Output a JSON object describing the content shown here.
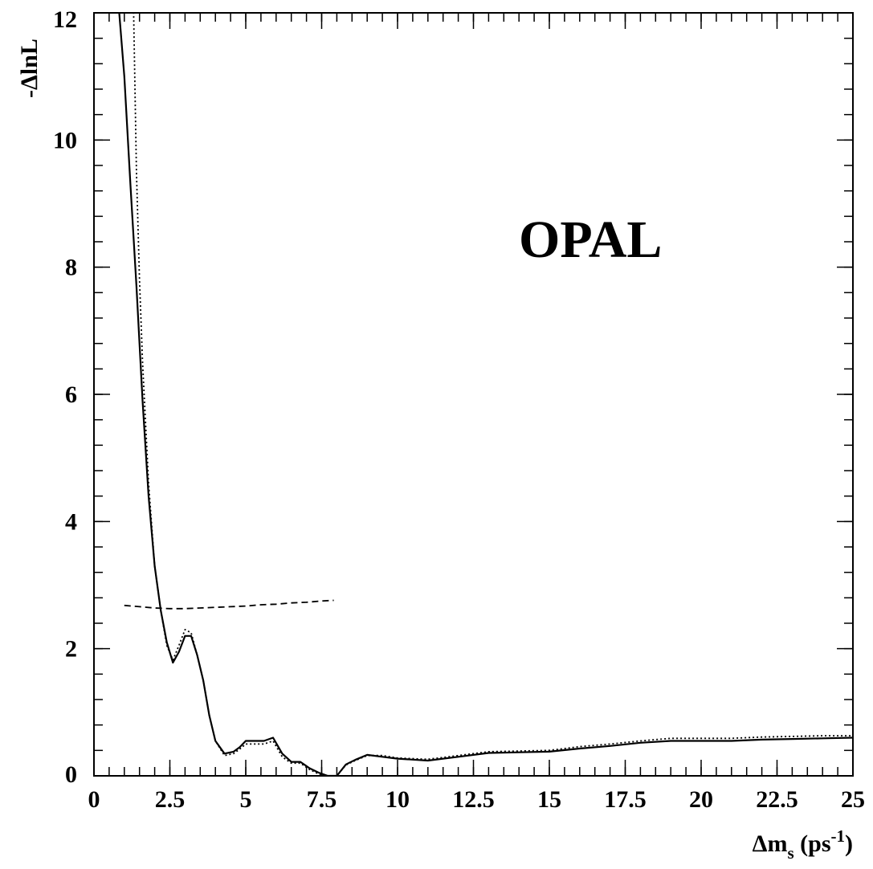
{
  "chart_data": {
    "type": "line",
    "title": "",
    "annotation": "OPAL",
    "xlabel": {
      "main": "Δm",
      "subscript": "s",
      "unit_open": " (ps",
      "unit_exp": "-1",
      "unit_close": ")"
    },
    "ylabel": "-ΔlnL",
    "xlim": [
      0,
      25
    ],
    "ylim": [
      0,
      12
    ],
    "x_ticks": [
      {
        "value": 0,
        "label": "0"
      },
      {
        "value": 2.5,
        "label": "2.5"
      },
      {
        "value": 5,
        "label": "5"
      },
      {
        "value": 7.5,
        "label": "7.5"
      },
      {
        "value": 10,
        "label": "10"
      },
      {
        "value": 12.5,
        "label": "12.5"
      },
      {
        "value": 15,
        "label": "15"
      },
      {
        "value": 17.5,
        "label": "17.5"
      },
      {
        "value": 20,
        "label": "20"
      },
      {
        "value": 22.5,
        "label": "22.5"
      },
      {
        "value": 25,
        "label": "25"
      }
    ],
    "y_ticks": [
      {
        "value": 0,
        "label": "0"
      },
      {
        "value": 2,
        "label": "2"
      },
      {
        "value": 4,
        "label": "4"
      },
      {
        "value": 6,
        "label": "6"
      },
      {
        "value": 8,
        "label": "8"
      },
      {
        "value": 10,
        "label": "10"
      },
      {
        "value": 12,
        "label": "12"
      }
    ],
    "x_minor_step": 0.5,
    "y_minor_step": 0.4,
    "grid": false,
    "series": [
      {
        "style": "solid",
        "x": [
          0.8,
          1.0,
          1.2,
          1.4,
          1.6,
          1.8,
          2.0,
          2.2,
          2.4,
          2.6,
          2.8,
          3.0,
          3.2,
          3.4,
          3.6,
          3.8,
          4.0,
          4.3,
          4.6,
          4.8,
          5.0,
          5.3,
          5.6,
          5.9,
          6.2,
          6.5,
          6.8,
          7.1,
          7.4,
          7.7,
          8.0,
          8.3,
          8.6,
          9.0,
          9.5,
          10.0,
          11.0,
          12.0,
          13.0,
          14.0,
          15.0,
          16.0,
          17.0,
          18.0,
          19.0,
          20.0,
          21.0,
          22.0,
          23.0,
          24.0,
          25.0
        ],
        "y": [
          12.2,
          11.0,
          9.3,
          7.7,
          5.9,
          4.4,
          3.3,
          2.6,
          2.1,
          1.78,
          1.95,
          2.2,
          2.2,
          1.9,
          1.5,
          0.95,
          0.55,
          0.35,
          0.38,
          0.45,
          0.55,
          0.55,
          0.55,
          0.6,
          0.35,
          0.22,
          0.22,
          0.12,
          0.05,
          0.0,
          0.0,
          0.18,
          0.25,
          0.33,
          0.3,
          0.27,
          0.24,
          0.3,
          0.36,
          0.37,
          0.38,
          0.43,
          0.47,
          0.52,
          0.55,
          0.55,
          0.55,
          0.57,
          0.58,
          0.59,
          0.6
        ]
      },
      {
        "style": "dotted",
        "x": [
          1.3,
          1.4,
          1.5,
          1.6,
          1.8,
          2.0,
          2.2,
          2.4,
          2.6,
          2.8,
          3.0,
          3.2,
          3.4,
          3.6,
          3.8,
          4.0,
          4.3,
          4.6,
          4.8,
          5.0,
          5.3,
          5.6,
          5.9,
          6.2,
          6.5,
          6.8,
          7.1,
          7.4,
          7.7,
          8.0,
          8.3,
          8.6,
          9.0,
          9.5,
          10.0,
          11.0,
          12.0,
          13.0,
          14.0,
          15.0,
          16.0,
          17.0,
          18.0,
          19.0,
          20.0,
          21.0,
          22.0,
          23.0,
          24.0,
          25.0
        ],
        "y": [
          12.2,
          9.5,
          7.8,
          6.5,
          4.6,
          3.3,
          2.6,
          2.05,
          1.82,
          2.05,
          2.3,
          2.25,
          1.9,
          1.5,
          0.95,
          0.55,
          0.32,
          0.35,
          0.42,
          0.5,
          0.5,
          0.5,
          0.55,
          0.3,
          0.2,
          0.2,
          0.1,
          0.03,
          0.0,
          0.0,
          0.17,
          0.24,
          0.32,
          0.32,
          0.28,
          0.26,
          0.32,
          0.38,
          0.39,
          0.4,
          0.46,
          0.5,
          0.55,
          0.59,
          0.59,
          0.59,
          0.61,
          0.62,
          0.63,
          0.63
        ]
      },
      {
        "style": "dashed",
        "x": [
          1.0,
          1.5,
          2.0,
          2.5,
          3.0,
          3.5,
          4.0,
          4.5,
          5.0,
          5.5,
          6.0,
          6.5,
          7.0,
          7.5,
          7.9
        ],
        "y": [
          2.68,
          2.66,
          2.64,
          2.63,
          2.63,
          2.64,
          2.65,
          2.66,
          2.67,
          2.69,
          2.7,
          2.72,
          2.73,
          2.75,
          2.76
        ]
      }
    ]
  }
}
